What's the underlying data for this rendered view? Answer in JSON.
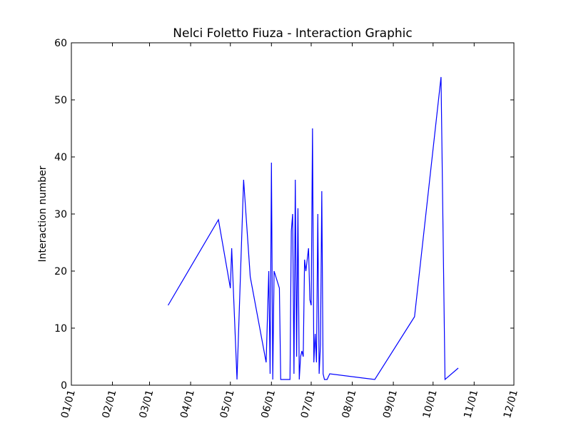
{
  "chart_data": {
    "type": "line",
    "title": "Nelci Foletto Fiuza - Interaction Graphic",
    "xlabel": "",
    "ylabel": "Interaction number",
    "x_axis_type": "date",
    "xlim": [
      "01/01",
      "12/01"
    ],
    "ylim": [
      0,
      60
    ],
    "x_ticks": [
      "01/01",
      "02/01",
      "03/01",
      "04/01",
      "05/01",
      "06/01",
      "07/01",
      "08/01",
      "09/01",
      "10/01",
      "11/01",
      "12/01"
    ],
    "y_ticks": [
      0,
      10,
      20,
      30,
      40,
      50,
      60
    ],
    "grid": false,
    "line_color": "#0000ff",
    "series": [
      {
        "x": [
          "03/15",
          "04/22",
          "05/01",
          "05/02",
          "05/06",
          "05/11",
          "05/16",
          "05/28",
          "05/30",
          "05/31",
          "06/01",
          "06/02",
          "06/03",
          "06/07",
          "06/08",
          "06/15",
          "06/16",
          "06/17",
          "06/18",
          "06/19",
          "06/20",
          "06/21",
          "06/22",
          "06/23",
          "06/24",
          "06/25",
          "06/26",
          "06/27",
          "06/29",
          "06/30",
          "07/01",
          "07/02",
          "07/03",
          "07/04",
          "07/05",
          "07/06",
          "07/07",
          "07/08",
          "07/09",
          "07/10",
          "07/11",
          "07/12",
          "07/13",
          "07/15",
          "08/18",
          "09/17",
          "10/07",
          "10/10",
          "10/20"
        ],
        "y": [
          14,
          29,
          17,
          24,
          1,
          36,
          19,
          4,
          20,
          2,
          39,
          1,
          20,
          17,
          1,
          1,
          27,
          30,
          2,
          36,
          5,
          31,
          1,
          5,
          6,
          5,
          22,
          20,
          24,
          15,
          14,
          45,
          4,
          9,
          4,
          30,
          2,
          7,
          34,
          2,
          1,
          1,
          1,
          2,
          1,
          12,
          54,
          1,
          3
        ]
      }
    ]
  }
}
